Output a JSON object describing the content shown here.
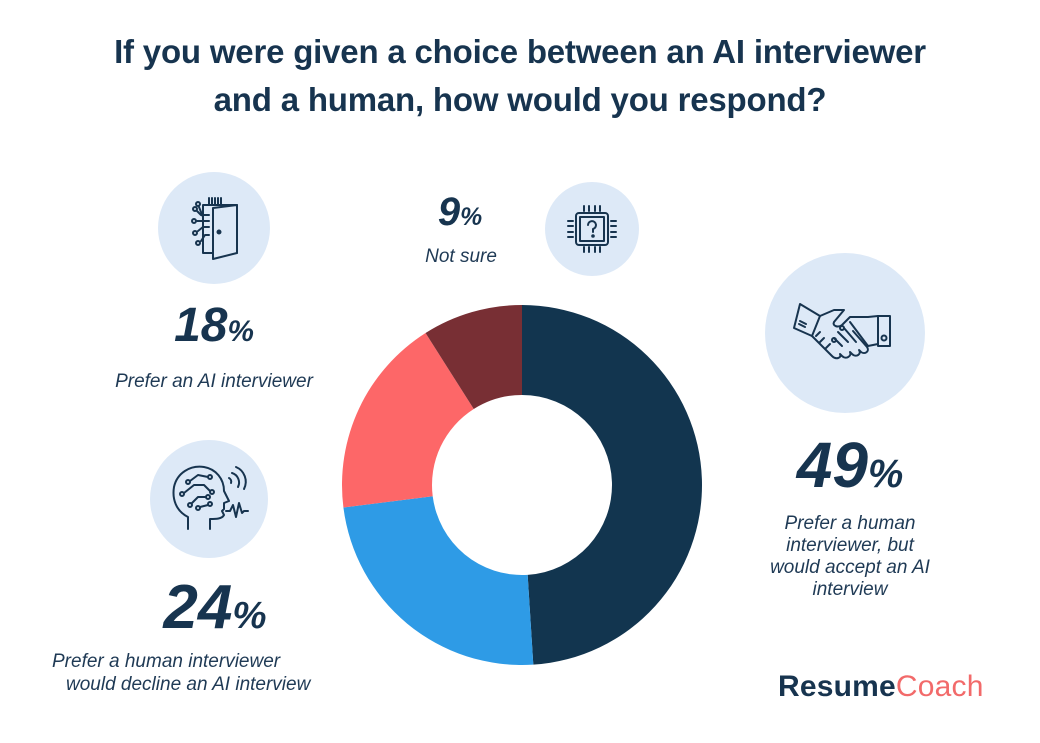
{
  "title_line1": "If you were given a choice between an AI interviewer",
  "title_line2": "and a human, how would you respond?",
  "segments": [
    {
      "id": "human-accept",
      "pct_number": "49",
      "pct_symbol": "%",
      "label_lines": [
        "Prefer a human",
        "interviewer, but",
        "would accept an AI",
        "interview"
      ],
      "color": "#12354f",
      "icon": "handshake-icon"
    },
    {
      "id": "human-decline",
      "pct_number": "24",
      "pct_symbol": "%",
      "label_lines": [
        "Prefer a human interviewer",
        "would decline an AI interview"
      ],
      "color": "#2e9be6",
      "icon": "ai-head-speaking-icon"
    },
    {
      "id": "prefer-ai",
      "pct_number": "18",
      "pct_symbol": "%",
      "label_lines": [
        "Prefer an AI interviewer"
      ],
      "color": "#fd6768",
      "icon": "circuit-door-icon"
    },
    {
      "id": "not-sure",
      "pct_number": "9",
      "pct_symbol": "%",
      "label_lines": [
        "Not sure"
      ],
      "color": "#782f34",
      "icon": "chip-question-icon"
    }
  ],
  "brand": {
    "part1": "Resume",
    "part2": "Coach"
  },
  "colors": {
    "text": "#17344f",
    "icon_bg": "#dde9f7",
    "brand_accent": "#f26a6a"
  },
  "chart_data": {
    "type": "pie",
    "subtype": "donut",
    "title": "If you were given a choice between an AI interviewer and a human, how would you respond?",
    "categories": [
      "Prefer a human interviewer, but would accept an AI interview",
      "Prefer a human interviewer would decline an AI interview",
      "Prefer an AI interviewer",
      "Not sure"
    ],
    "values": [
      49,
      24,
      18,
      9
    ],
    "unit": "%",
    "colors": [
      "#12354f",
      "#2e9be6",
      "#fd6768",
      "#782f34"
    ],
    "start_angle": "12 o'clock",
    "direction": "clockwise",
    "legend": "none (direct labels)"
  }
}
